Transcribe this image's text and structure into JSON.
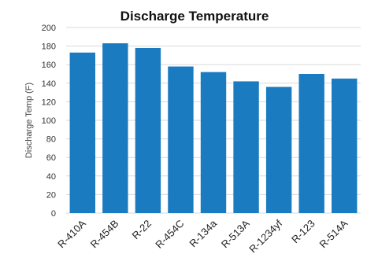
{
  "chart_data": {
    "type": "bar",
    "title": "Discharge Temperature",
    "xlabel": "",
    "ylabel": "Discharge Temp (F)",
    "ylim": [
      0,
      200
    ],
    "yticks": [
      0,
      20,
      40,
      60,
      80,
      100,
      120,
      140,
      160,
      180,
      200
    ],
    "grid": true,
    "legend": "none",
    "bar_color": "#1a7bc1",
    "categories": [
      "R-410A",
      "R-454B",
      "R-22",
      "R-454C",
      "R-134a",
      "R-513A",
      "R-1234yf",
      "R-123",
      "R-514A"
    ],
    "values": [
      173,
      183,
      178,
      158,
      152,
      142,
      136,
      150,
      145
    ]
  }
}
